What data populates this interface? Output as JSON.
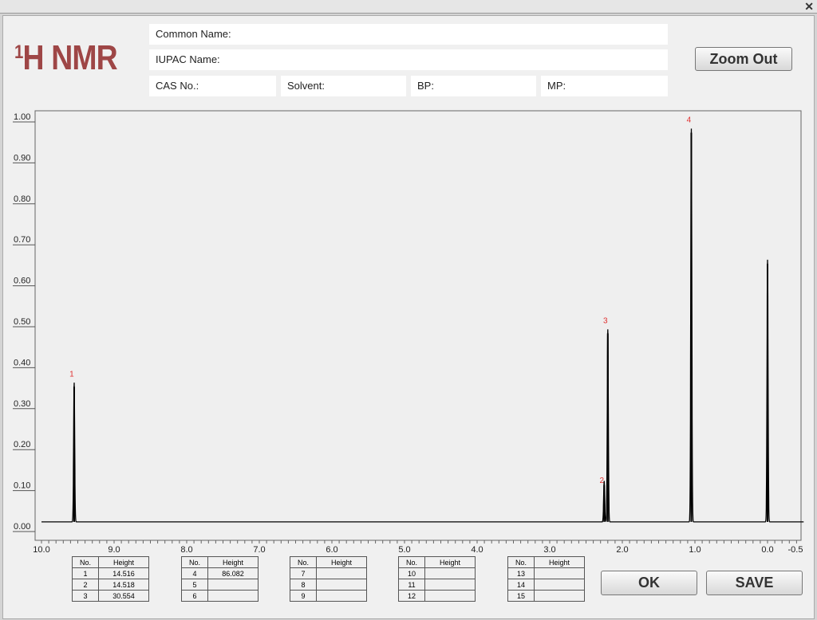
{
  "window": {
    "close_icon": "close-icon"
  },
  "header": {
    "title_sup": "1",
    "title": "H NMR"
  },
  "fields": {
    "common_name": "Common Name:",
    "iupac_name": "IUPAC Name:",
    "cas": "CAS No.:",
    "solvent": "Solvent:",
    "bp": "BP:",
    "mp": "MP:"
  },
  "buttons": {
    "zoom_out": "Zoom Out",
    "ok": "OK",
    "save": "SAVE"
  },
  "tables": [
    {
      "headers": [
        "No.",
        "Height"
      ],
      "rows": [
        [
          "1",
          "14.516"
        ],
        [
          "2",
          "14.518"
        ],
        [
          "3",
          "30.554"
        ]
      ]
    },
    {
      "headers": [
        "No.",
        "Height"
      ],
      "rows": [
        [
          "4",
          "86.082"
        ],
        [
          "5",
          ""
        ],
        [
          "6",
          ""
        ]
      ]
    },
    {
      "headers": [
        "No.",
        "Height"
      ],
      "rows": [
        [
          "7",
          ""
        ],
        [
          "8",
          ""
        ],
        [
          "9",
          ""
        ]
      ]
    },
    {
      "headers": [
        "No.",
        "Height"
      ],
      "rows": [
        [
          "10",
          ""
        ],
        [
          "11",
          ""
        ],
        [
          "12",
          ""
        ]
      ]
    },
    {
      "headers": [
        "No.",
        "Height"
      ],
      "rows": [
        [
          "13",
          ""
        ],
        [
          "14",
          ""
        ],
        [
          "15",
          ""
        ]
      ]
    }
  ],
  "chart_data": {
    "type": "line",
    "xlim": [
      10.0,
      -0.5
    ],
    "ylim": [
      0,
      1.0
    ],
    "x_ticks": [
      "10.0",
      "9.0",
      "8.0",
      "7.0",
      "6.0",
      "5.0",
      "4.0",
      "3.0",
      "2.0",
      "1.0",
      "0.0",
      "-0.5"
    ],
    "y_ticks": [
      "0.00",
      "0.10",
      "0.20",
      "0.30",
      "0.40",
      "0.50",
      "0.60",
      "0.70",
      "0.80",
      "0.90",
      "1.00"
    ],
    "peak_color": "#e03030",
    "peaks": [
      {
        "label": "1",
        "ppm": 9.55,
        "height": 0.34
      },
      {
        "label": "2",
        "ppm": 2.25,
        "height": 0.1
      },
      {
        "label": "3",
        "ppm": 2.2,
        "height": 0.47
      },
      {
        "label": "4",
        "ppm": 1.05,
        "height": 0.96
      },
      {
        "label": "",
        "ppm": 0.0,
        "height": 0.64
      }
    ],
    "baseline": 0.01
  }
}
